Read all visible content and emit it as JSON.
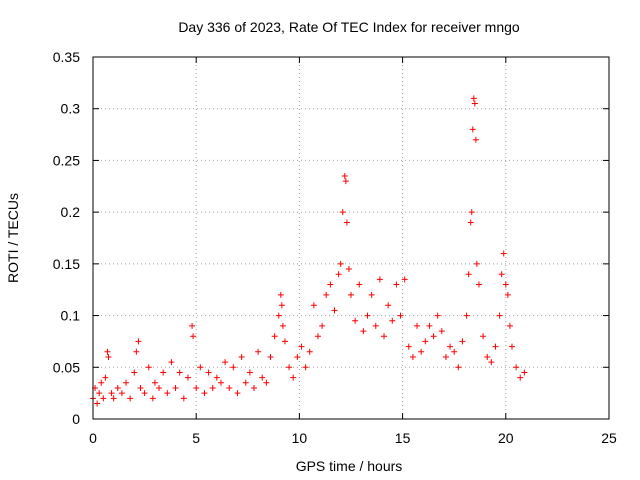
{
  "chart_data": {
    "type": "scatter",
    "title": "Day 336 of 2023, Rate Of TEC Index for receiver mngo",
    "xlabel": "GPS time / hours",
    "ylabel": "ROTI / TECUs",
    "xlim": [
      0,
      25
    ],
    "ylim": [
      0,
      0.35
    ],
    "x_ticks": [
      "0",
      "5",
      "10",
      "15",
      "20",
      "25"
    ],
    "y_ticks": [
      "0",
      "0.05",
      "0.1",
      "0.15",
      "0.2",
      "0.25",
      "0.3",
      "0.35"
    ],
    "grid": true,
    "marker": "+",
    "color": "#ff0000",
    "points": [
      [
        0.0,
        0.02
      ],
      [
        0.1,
        0.03
      ],
      [
        0.2,
        0.015
      ],
      [
        0.3,
        0.025
      ],
      [
        0.4,
        0.035
      ],
      [
        0.5,
        0.02
      ],
      [
        0.6,
        0.04
      ],
      [
        0.7,
        0.065
      ],
      [
        0.75,
        0.06
      ],
      [
        0.9,
        0.025
      ],
      [
        1.0,
        0.02
      ],
      [
        1.2,
        0.03
      ],
      [
        1.4,
        0.025
      ],
      [
        1.6,
        0.035
      ],
      [
        1.8,
        0.02
      ],
      [
        2.0,
        0.045
      ],
      [
        2.1,
        0.065
      ],
      [
        2.2,
        0.075
      ],
      [
        2.3,
        0.03
      ],
      [
        2.5,
        0.025
      ],
      [
        2.7,
        0.05
      ],
      [
        2.9,
        0.02
      ],
      [
        3.0,
        0.035
      ],
      [
        3.2,
        0.03
      ],
      [
        3.4,
        0.045
      ],
      [
        3.6,
        0.025
      ],
      [
        3.8,
        0.055
      ],
      [
        4.0,
        0.03
      ],
      [
        4.2,
        0.045
      ],
      [
        4.4,
        0.02
      ],
      [
        4.6,
        0.04
      ],
      [
        4.8,
        0.09
      ],
      [
        4.85,
        0.08
      ],
      [
        5.0,
        0.03
      ],
      [
        5.2,
        0.05
      ],
      [
        5.4,
        0.025
      ],
      [
        5.6,
        0.045
      ],
      [
        5.8,
        0.03
      ],
      [
        6.0,
        0.04
      ],
      [
        6.2,
        0.035
      ],
      [
        6.4,
        0.055
      ],
      [
        6.6,
        0.03
      ],
      [
        6.8,
        0.05
      ],
      [
        7.0,
        0.025
      ],
      [
        7.2,
        0.06
      ],
      [
        7.4,
        0.035
      ],
      [
        7.6,
        0.045
      ],
      [
        7.8,
        0.03
      ],
      [
        8.0,
        0.065
      ],
      [
        8.2,
        0.04
      ],
      [
        8.4,
        0.035
      ],
      [
        8.6,
        0.06
      ],
      [
        8.8,
        0.08
      ],
      [
        9.0,
        0.1
      ],
      [
        9.1,
        0.12
      ],
      [
        9.15,
        0.11
      ],
      [
        9.2,
        0.09
      ],
      [
        9.3,
        0.075
      ],
      [
        9.5,
        0.05
      ],
      [
        9.7,
        0.04
      ],
      [
        9.9,
        0.06
      ],
      [
        10.1,
        0.07
      ],
      [
        10.3,
        0.05
      ],
      [
        10.5,
        0.065
      ],
      [
        10.7,
        0.11
      ],
      [
        10.9,
        0.08
      ],
      [
        11.1,
        0.09
      ],
      [
        11.3,
        0.12
      ],
      [
        11.5,
        0.13
      ],
      [
        11.7,
        0.105
      ],
      [
        11.9,
        0.14
      ],
      [
        12.0,
        0.15
      ],
      [
        12.1,
        0.2
      ],
      [
        12.2,
        0.235
      ],
      [
        12.25,
        0.23
      ],
      [
        12.3,
        0.19
      ],
      [
        12.4,
        0.145
      ],
      [
        12.5,
        0.12
      ],
      [
        12.7,
        0.095
      ],
      [
        12.9,
        0.13
      ],
      [
        13.1,
        0.085
      ],
      [
        13.3,
        0.1
      ],
      [
        13.5,
        0.12
      ],
      [
        13.7,
        0.09
      ],
      [
        13.9,
        0.135
      ],
      [
        14.1,
        0.08
      ],
      [
        14.3,
        0.11
      ],
      [
        14.5,
        0.095
      ],
      [
        14.7,
        0.13
      ],
      [
        14.9,
        0.1
      ],
      [
        15.1,
        0.135
      ],
      [
        15.3,
        0.07
      ],
      [
        15.5,
        0.06
      ],
      [
        15.7,
        0.09
      ],
      [
        15.9,
        0.065
      ],
      [
        16.1,
        0.075
      ],
      [
        16.3,
        0.09
      ],
      [
        16.5,
        0.08
      ],
      [
        16.7,
        0.1
      ],
      [
        16.9,
        0.085
      ],
      [
        17.1,
        0.06
      ],
      [
        17.3,
        0.07
      ],
      [
        17.5,
        0.065
      ],
      [
        17.7,
        0.05
      ],
      [
        17.9,
        0.075
      ],
      [
        18.1,
        0.1
      ],
      [
        18.2,
        0.14
      ],
      [
        18.3,
        0.19
      ],
      [
        18.35,
        0.2
      ],
      [
        18.4,
        0.28
      ],
      [
        18.45,
        0.31
      ],
      [
        18.5,
        0.305
      ],
      [
        18.55,
        0.27
      ],
      [
        18.6,
        0.15
      ],
      [
        18.7,
        0.13
      ],
      [
        18.9,
        0.08
      ],
      [
        19.1,
        0.06
      ],
      [
        19.3,
        0.055
      ],
      [
        19.5,
        0.07
      ],
      [
        19.7,
        0.1
      ],
      [
        19.8,
        0.14
      ],
      [
        19.9,
        0.16
      ],
      [
        20.0,
        0.13
      ],
      [
        20.1,
        0.12
      ],
      [
        20.2,
        0.09
      ],
      [
        20.3,
        0.07
      ],
      [
        20.5,
        0.05
      ],
      [
        20.7,
        0.04
      ],
      [
        20.9,
        0.045
      ]
    ]
  }
}
